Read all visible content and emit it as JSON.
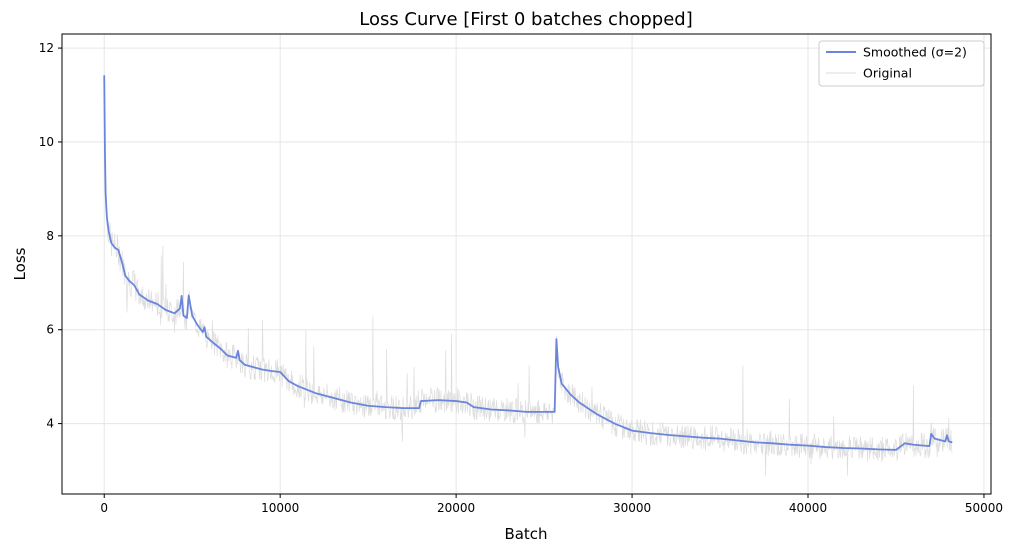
{
  "chart_data": {
    "type": "line",
    "title": "Loss Curve [First 0 batches chopped]",
    "xlabel": "Batch",
    "ylabel": "Loss",
    "xlim": [
      -2400,
      50400
    ],
    "ylim": [
      2.5,
      12.3
    ],
    "xticks": [
      0,
      10000,
      20000,
      30000,
      40000,
      50000
    ],
    "yticks": [
      4,
      6,
      8,
      10,
      12
    ],
    "grid": true,
    "legend": {
      "placement": "top-right"
    },
    "series": [
      {
        "name": "Smoothed (σ=2)",
        "color": "#6a85db",
        "points": [
          [
            0,
            11.42
          ],
          [
            40,
            9.8
          ],
          [
            80,
            8.9
          ],
          [
            150,
            8.4
          ],
          [
            250,
            8.1
          ],
          [
            400,
            7.85
          ],
          [
            600,
            7.75
          ],
          [
            800,
            7.7
          ],
          [
            1000,
            7.45
          ],
          [
            1200,
            7.15
          ],
          [
            1400,
            7.05
          ],
          [
            1700,
            6.95
          ],
          [
            2000,
            6.75
          ],
          [
            2500,
            6.62
          ],
          [
            3000,
            6.55
          ],
          [
            3500,
            6.42
          ],
          [
            4000,
            6.35
          ],
          [
            4300,
            6.45
          ],
          [
            4400,
            6.72
          ],
          [
            4500,
            6.3
          ],
          [
            4700,
            6.25
          ],
          [
            4800,
            6.73
          ],
          [
            5000,
            6.3
          ],
          [
            5300,
            6.1
          ],
          [
            5600,
            5.95
          ],
          [
            5700,
            6.05
          ],
          [
            5800,
            5.85
          ],
          [
            6200,
            5.72
          ],
          [
            6600,
            5.6
          ],
          [
            7000,
            5.45
          ],
          [
            7500,
            5.4
          ],
          [
            7600,
            5.55
          ],
          [
            7700,
            5.35
          ],
          [
            8000,
            5.25
          ],
          [
            8500,
            5.2
          ],
          [
            9000,
            5.15
          ],
          [
            9500,
            5.12
          ],
          [
            10000,
            5.1
          ],
          [
            10500,
            4.9
          ],
          [
            11000,
            4.8
          ],
          [
            12000,
            4.65
          ],
          [
            13000,
            4.55
          ],
          [
            14000,
            4.45
          ],
          [
            15000,
            4.38
          ],
          [
            16000,
            4.35
          ],
          [
            17000,
            4.33
          ],
          [
            17900,
            4.33
          ],
          [
            18000,
            4.48
          ],
          [
            19000,
            4.5
          ],
          [
            20000,
            4.48
          ],
          [
            20600,
            4.45
          ],
          [
            21000,
            4.35
          ],
          [
            22000,
            4.3
          ],
          [
            23000,
            4.28
          ],
          [
            24000,
            4.25
          ],
          [
            25000,
            4.25
          ],
          [
            25600,
            4.25
          ],
          [
            25700,
            5.8
          ],
          [
            25800,
            5.2
          ],
          [
            26000,
            4.85
          ],
          [
            26500,
            4.62
          ],
          [
            27000,
            4.45
          ],
          [
            28000,
            4.2
          ],
          [
            29000,
            4.0
          ],
          [
            30000,
            3.85
          ],
          [
            31000,
            3.8
          ],
          [
            32000,
            3.76
          ],
          [
            33000,
            3.73
          ],
          [
            34000,
            3.7
          ],
          [
            35000,
            3.68
          ],
          [
            36000,
            3.64
          ],
          [
            37000,
            3.6
          ],
          [
            38000,
            3.58
          ],
          [
            39000,
            3.55
          ],
          [
            40000,
            3.53
          ],
          [
            41000,
            3.5
          ],
          [
            42000,
            3.48
          ],
          [
            43000,
            3.47
          ],
          [
            44000,
            3.45
          ],
          [
            45000,
            3.44
          ],
          [
            45500,
            3.58
          ],
          [
            46000,
            3.55
          ],
          [
            46900,
            3.52
          ],
          [
            47000,
            3.78
          ],
          [
            47200,
            3.68
          ],
          [
            47500,
            3.65
          ],
          [
            47800,
            3.62
          ],
          [
            47900,
            3.75
          ],
          [
            48000,
            3.62
          ],
          [
            48200,
            3.6
          ]
        ]
      },
      {
        "name": "Original",
        "color": "#dddddd",
        "noise_amplitude": 0.55
      }
    ]
  }
}
